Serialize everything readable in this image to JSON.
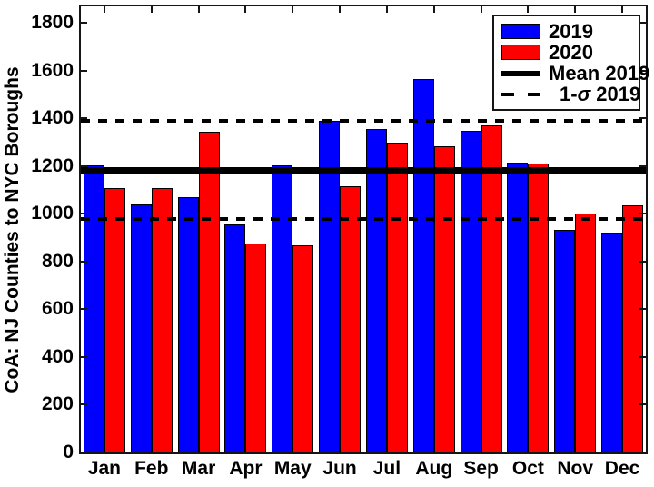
{
  "chart_data": {
    "type": "bar",
    "title": "",
    "xlabel": "",
    "ylabel": "CoA: NJ Counties to NYC Boroughs",
    "categories": [
      "Jan",
      "Feb",
      "Mar",
      "Apr",
      "May",
      "Jun",
      "Jul",
      "Aug",
      "Sep",
      "Oct",
      "Nov",
      "Dec"
    ],
    "series": [
      {
        "name": "2019",
        "color": "#0000FF",
        "values": [
          1205,
          1040,
          1070,
          955,
          1205,
          1390,
          1355,
          1565,
          1350,
          1215,
          935,
          920
        ]
      },
      {
        "name": "2020",
        "color": "#FF0000",
        "values": [
          1110,
          1110,
          1345,
          875,
          870,
          1115,
          1300,
          1285,
          1370,
          1210,
          1000,
          1035
        ]
      }
    ],
    "mean_2019": 1184,
    "sigma_2019": 205,
    "overlays": [
      {
        "name": "mean-2019-line",
        "label": "Mean 2019",
        "style": "solid",
        "value": 1184
      },
      {
        "name": "sigma-upper-line",
        "label": "1-sigma 2019 upper",
        "style": "dashed",
        "value": 1389
      },
      {
        "name": "sigma-lower-line",
        "label": "1-sigma 2019 lower",
        "style": "dashed",
        "value": 979
      }
    ],
    "ylim": [
      0,
      1870
    ],
    "yticks": [
      0,
      200,
      400,
      600,
      800,
      1000,
      1200,
      1400,
      1600,
      1800
    ],
    "grid": false,
    "legend": {
      "position": "top-right",
      "entries": [
        {
          "label": "2019",
          "swatch": "blue-rect"
        },
        {
          "label": "2020",
          "swatch": "red-rect"
        },
        {
          "label": "Mean 2019",
          "swatch": "thick-solid-line"
        },
        {
          "label_parts": {
            "prefix": "1-",
            "sigma": "σ",
            "suffix": " 2019"
          },
          "swatch": "dashed-line"
        }
      ]
    }
  },
  "colors": {
    "bar_2019": "#0000FF",
    "bar_2020": "#FF0000",
    "axis": "#151515",
    "line": "#000000",
    "background": "#FFFFFF"
  }
}
